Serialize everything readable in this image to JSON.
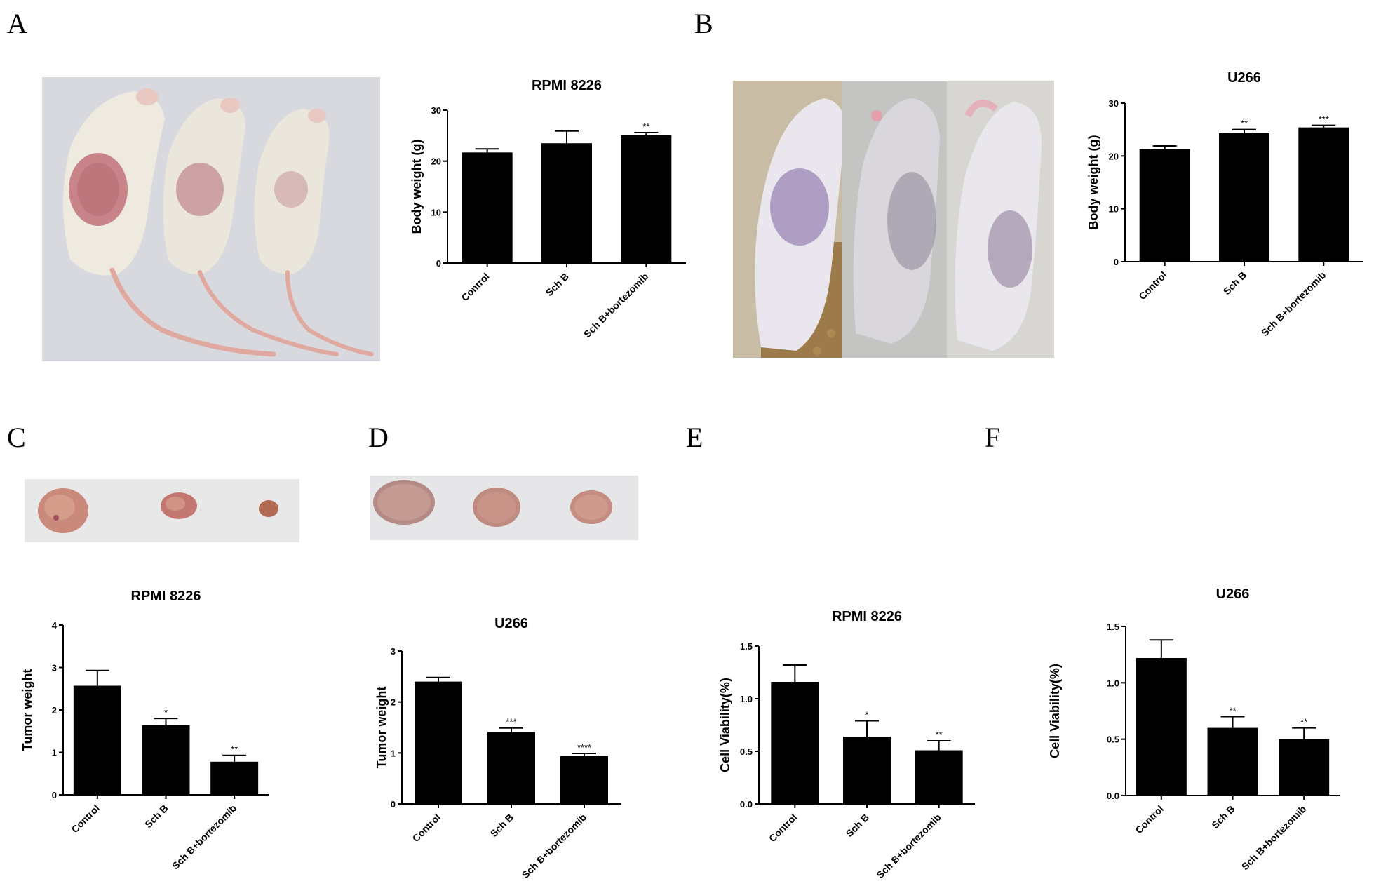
{
  "panel_labels": [
    "A",
    "B",
    "C",
    "D",
    "E",
    "F"
  ],
  "photos": [
    {
      "id": "mice-rpmi",
      "desc_icon": "mouse-photo"
    },
    {
      "id": "mice-u266",
      "desc_icon": "mouse-photo"
    },
    {
      "id": "tumors-rpmi",
      "desc_icon": "tumor-photo"
    },
    {
      "id": "tumors-u266",
      "desc_icon": "tumor-photo"
    }
  ],
  "colors": {
    "bar": "#000000",
    "axis": "#000000",
    "photo_bg": "#e8e8e8",
    "tumor": "#c98a7c"
  },
  "chart_data": [
    {
      "id": "A-body-weight",
      "type": "bar",
      "title": "RPMI 8226",
      "ylabel": "Body weight (g)",
      "categories": [
        "Control",
        "Sch B",
        "Sch B+bortezomib"
      ],
      "values": [
        21.7,
        23.5,
        25.1
      ],
      "errors": [
        0.7,
        2.4,
        0.5
      ],
      "significance": [
        "",
        "",
        "**"
      ],
      "ylim": [
        0,
        30
      ],
      "yticks": [
        0,
        10,
        20,
        30
      ],
      "ytick_labels": [
        "0",
        "10",
        "20",
        "30"
      ]
    },
    {
      "id": "B-body-weight",
      "type": "bar",
      "title": "U266",
      "ylabel": "Body weight (g)",
      "categories": [
        "Control",
        "Sch B",
        "Sch B+bortezomib"
      ],
      "values": [
        21.3,
        24.3,
        25.4
      ],
      "errors": [
        0.6,
        0.7,
        0.4
      ],
      "significance": [
        "",
        "**",
        "***"
      ],
      "ylim": [
        0,
        30
      ],
      "yticks": [
        0,
        10,
        20,
        30
      ],
      "ytick_labels": [
        "0",
        "10",
        "20",
        "30"
      ]
    },
    {
      "id": "C-tumor-weight",
      "type": "bar",
      "title": "RPMI 8226",
      "ylabel": "Tumor weight",
      "categories": [
        "Control",
        "Sch B",
        "Sch B+bortezomib"
      ],
      "values": [
        2.57,
        1.64,
        0.78
      ],
      "errors": [
        0.36,
        0.16,
        0.15
      ],
      "significance": [
        "",
        "*",
        "**"
      ],
      "ylim": [
        0,
        4
      ],
      "yticks": [
        0,
        1,
        2,
        3,
        4
      ],
      "ytick_labels": [
        "0",
        "1",
        "2",
        "3",
        "4"
      ]
    },
    {
      "id": "D-tumor-weight",
      "type": "bar",
      "title": "U266",
      "ylabel": "Tumor weight",
      "categories": [
        "Control",
        "Sch B",
        "Sch B+bortezomib"
      ],
      "values": [
        2.4,
        1.41,
        0.94
      ],
      "errors": [
        0.08,
        0.08,
        0.05
      ],
      "significance": [
        "",
        "***",
        "****"
      ],
      "ylim": [
        0,
        3
      ],
      "yticks": [
        0,
        1,
        2,
        3
      ],
      "ytick_labels": [
        "0",
        "1",
        "2",
        "3"
      ]
    },
    {
      "id": "E-cell-viability",
      "type": "bar",
      "title": "RPMI 8226",
      "ylabel": "Cell Viability(%)",
      "categories": [
        "Control",
        "Sch B",
        "Sch B+bortezomib"
      ],
      "values": [
        1.16,
        0.64,
        0.51
      ],
      "errors": [
        0.16,
        0.15,
        0.09
      ],
      "significance": [
        "",
        "*",
        "**"
      ],
      "ylim": [
        0,
        1.5
      ],
      "yticks": [
        0,
        0.5,
        1.0,
        1.5
      ],
      "ytick_labels": [
        "0.0",
        "0.5",
        "1.0",
        "1.5"
      ]
    },
    {
      "id": "F-cell-viability",
      "type": "bar",
      "title": "U266",
      "ylabel": "Cell Viability(%)",
      "categories": [
        "Control",
        "Sch B",
        "Sch B+bortezomib"
      ],
      "values": [
        1.22,
        0.6,
        0.5
      ],
      "errors": [
        0.16,
        0.1,
        0.1
      ],
      "significance": [
        "",
        "**",
        "**"
      ],
      "ylim": [
        0,
        1.5
      ],
      "yticks": [
        0,
        0.5,
        1.0,
        1.5
      ],
      "ytick_labels": [
        "0.0",
        "0.5",
        "1.0",
        "1.5"
      ]
    }
  ]
}
